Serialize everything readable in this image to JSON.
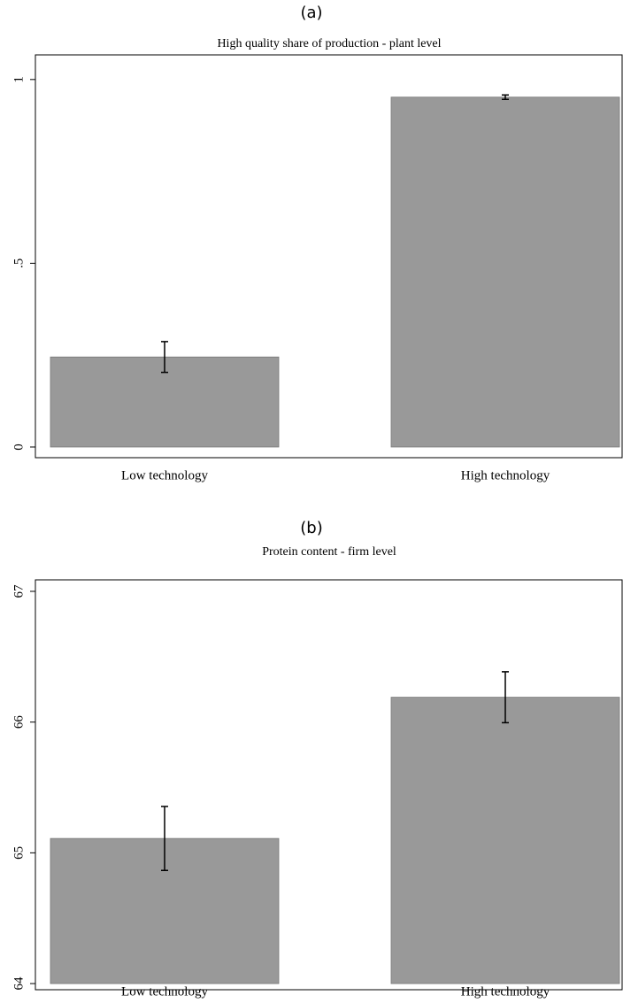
{
  "chart_data": [
    {
      "type": "bar",
      "panel_label": "(a)",
      "title": "High quality share of production - plant level",
      "categories": [
        "Low technology",
        "High technology"
      ],
      "values": [
        0.245,
        0.952
      ],
      "errors": [
        0.042,
        0.006
      ],
      "color": "#999999",
      "ylim": [
        -0.029,
        1.067
      ],
      "yticks": [
        0,
        {
          "value": 0.5,
          "label": ".5"
        },
        1
      ]
    },
    {
      "type": "bar",
      "panel_label": "(b)",
      "title": "Protein content - firm level",
      "categories": [
        "Low technology",
        "High technology"
      ],
      "values": [
        65.11,
        66.19
      ],
      "errors": [
        0.245,
        0.195
      ],
      "color": "#999999",
      "ylim": [
        63.953,
        67.088
      ],
      "yticks": [
        64,
        65,
        66,
        67
      ]
    }
  ]
}
